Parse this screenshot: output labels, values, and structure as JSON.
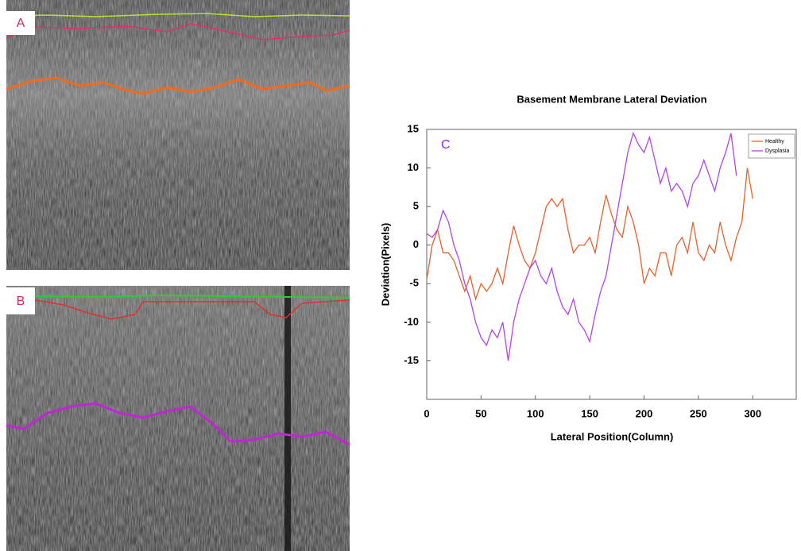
{
  "panels": {
    "a_label": "A",
    "b_label": "B"
  },
  "chart_data": {
    "type": "line",
    "title": "Basement Membrane Lateral Deviation",
    "panel_label": "C",
    "x_label": "Lateral Position(Column)",
    "y_label": "Deviation(Pixels)",
    "x": [
      0,
      5,
      10,
      15,
      20,
      25,
      30,
      35,
      40,
      45,
      50,
      55,
      60,
      65,
      70,
      75,
      80,
      85,
      90,
      95,
      100,
      105,
      110,
      115,
      120,
      125,
      130,
      135,
      140,
      145,
      150,
      155,
      160,
      165,
      170,
      175,
      180,
      185,
      190,
      195,
      200,
      205,
      210,
      215,
      220,
      225,
      230,
      235,
      240,
      245,
      250,
      255,
      260,
      265,
      270,
      275,
      280,
      285,
      290,
      295,
      300
    ],
    "series": [
      {
        "name": "Healthy",
        "color": "#e8602c",
        "values": [
          -4.5,
          0,
          2,
          -1,
          -1,
          -2,
          -4,
          -6,
          -4,
          -7,
          -5,
          -6,
          -5,
          -3,
          -5,
          -1,
          2.5,
          0,
          -2,
          -3,
          -1,
          2,
          5,
          6,
          5,
          6,
          2,
          -1,
          0,
          0,
          1,
          -1,
          3,
          6.5,
          4,
          2,
          1,
          5,
          3,
          0,
          -5,
          -3,
          -4,
          -1,
          -1,
          -4,
          0,
          1,
          -1,
          3,
          -1,
          -2,
          0,
          -1,
          3,
          0,
          -2,
          1,
          3,
          10,
          6
        ]
      },
      {
        "name": "Dysplasia",
        "color": "#b344e8",
        "values": [
          1.5,
          1,
          2,
          4.5,
          3,
          0,
          -2,
          -5,
          -7,
          -10,
          -12,
          -13,
          -11,
          -12,
          -10,
          -15,
          -10,
          -7,
          -5,
          -3,
          -2,
          -4,
          -5,
          -3,
          -6,
          -8,
          -9,
          -7,
          -10,
          -11,
          -12.5,
          -9,
          -6,
          -4,
          0,
          4,
          8,
          12,
          14.5,
          13,
          12,
          14,
          11,
          8,
          10,
          7,
          8,
          7,
          5,
          8,
          9,
          11,
          9,
          7,
          10,
          12,
          14.5,
          9,
          null,
          null,
          null
        ]
      }
    ],
    "xlim": [
      0,
      340
    ],
    "xticks": [
      0,
      50,
      100,
      150,
      200,
      250,
      300
    ],
    "ylim": [
      -20,
      15
    ],
    "yticks": [
      15,
      10,
      5,
      0,
      -5,
      -10,
      -15
    ],
    "grid": false,
    "legend": "upper right"
  }
}
